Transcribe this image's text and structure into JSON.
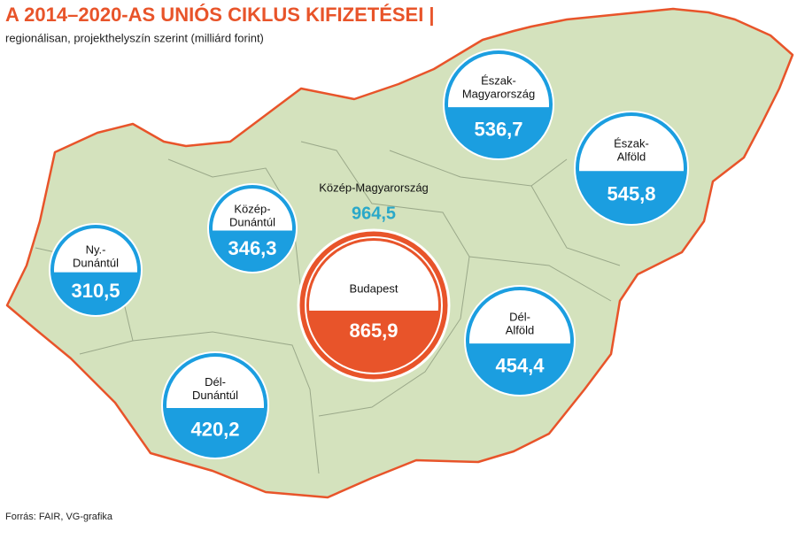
{
  "header": {
    "title": "A 2014–2020-AS UNIÓS CIKLUS KIFIZETÉSEI |",
    "subtitle": "regionálisan, projekthelyszín szerint (milliárd forint)"
  },
  "regions": [
    {
      "name": [
        "Észak-",
        "Magyarország"
      ],
      "value": "536,7"
    },
    {
      "name": [
        "Észak-",
        "Alföld"
      ],
      "value": "545,8"
    },
    {
      "name": [
        "Közép-",
        "Dunántúl"
      ],
      "value": "346,3"
    },
    {
      "name": [
        "Ny.-",
        "Dunántúl"
      ],
      "value": "310,5"
    },
    {
      "name": [
        "Dél-",
        "Alföld"
      ],
      "value": "454,4"
    },
    {
      "name": [
        "Dél-",
        "Dunántúl"
      ],
      "value": "420,2"
    }
  ],
  "central": {
    "name": "Közép-Magyarország",
    "value": "964,5",
    "budapest": {
      "name": "Budapest",
      "value": "865,9"
    }
  },
  "source": "Forrás: FAIR, VG-grafika"
}
